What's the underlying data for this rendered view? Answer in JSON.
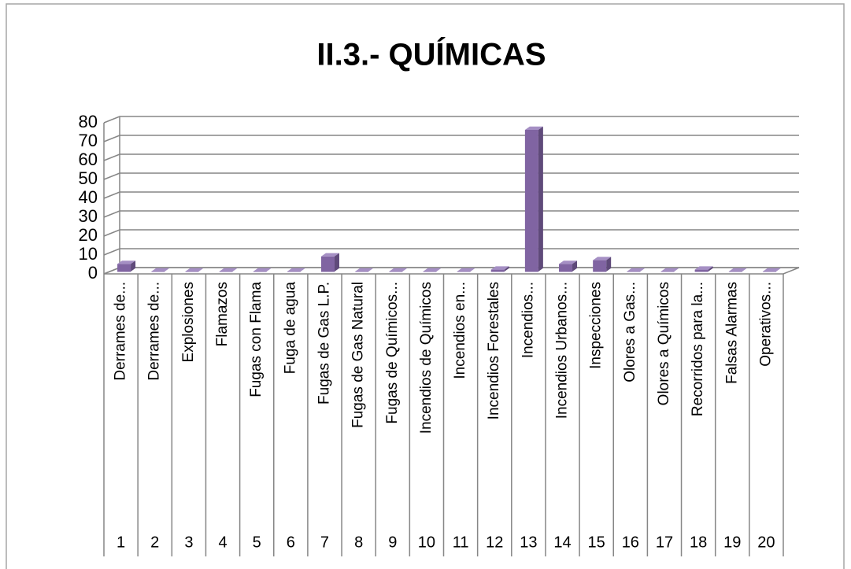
{
  "chart_data": {
    "type": "bar",
    "title": "II.3.- QUÍMICAS",
    "categories": [
      "Derrames de...",
      "Derrames de...",
      "Explosiones",
      "Flamazos",
      "Fugas con Flama",
      "Fuga de agua",
      "Fugas de Gas L.P.",
      "Fugas de Gas Natural",
      "Fugas de Químicos...",
      "Incendios de Químicos",
      "Incendios en...",
      "Incendios Forestales",
      "Incendios...",
      "Incendios Urbanos...",
      "Inspecciones",
      "Olores a Gas...",
      "Olores a Químicos",
      "Recorridos para la...",
      "Falsas Alarmas",
      "Operativos..."
    ],
    "category_numbers": [
      "1",
      "2",
      "3",
      "4",
      "5",
      "6",
      "7",
      "8",
      "9",
      "10",
      "11",
      "12",
      "13",
      "14",
      "15",
      "16",
      "17",
      "18",
      "19",
      "20"
    ],
    "values": [
      4,
      0,
      0,
      0,
      0,
      0,
      8,
      0,
      0,
      0,
      0,
      1,
      75,
      4,
      6,
      0,
      0,
      1,
      0,
      0
    ],
    "color": "#8064a2",
    "ylim": [
      0,
      80
    ],
    "yticks": [
      0,
      10,
      20,
      30,
      40,
      50,
      60,
      70,
      80
    ],
    "grid": true
  }
}
